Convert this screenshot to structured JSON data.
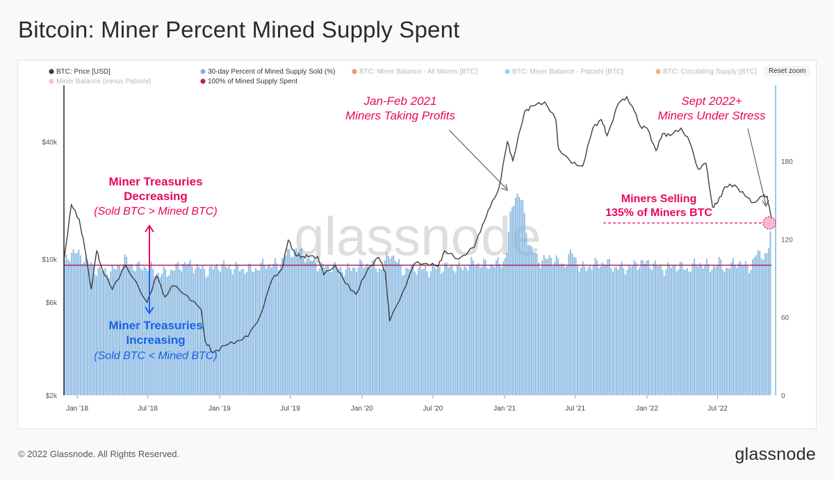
{
  "page": {
    "title": "Bitcoin: Miner Percent Mined Supply Spent",
    "footer_copyright": "© 2022 Glassnode. All Rights Reserved.",
    "footer_brand": "glassnode",
    "watermark": "glassnode",
    "reset_zoom_label": "Reset zoom"
  },
  "colors": {
    "price": "#3d3d3d",
    "supply_sold": "#7fb3df",
    "threshold": "#b0245c",
    "miner_balance_all": "#e53d1f",
    "miner_balance_patoshi": "#26b8d8",
    "circulating": "#f26b1d",
    "minus_patoshi": "#f29a86",
    "pink_annotation": "#e8065f",
    "blue_annotation": "#1763e8"
  },
  "legend": [
    {
      "label": "BTC: Price [USD]",
      "color": "#3d3d3d",
      "active": true
    },
    {
      "label": "30-day Percent of Mined Supply Sold (%)",
      "color": "#7fb3df",
      "active": true
    },
    {
      "label": "BTC: Miner Balance - All Miners [BTC]",
      "color": "#e53d1f",
      "active": false
    },
    {
      "label": "BTC: Miner Balance - Patoshi [BTC]",
      "color": "#26b8d8",
      "active": false
    },
    {
      "label": "BTC: Circulating Supply [BTC]",
      "color": "#f26b1d",
      "active": false
    },
    {
      "label": "Miner Balance (minus Patoshi)",
      "color": "#f29a86",
      "active": false
    },
    {
      "label": "100% of Mined Supply Spent",
      "color": "#b0245c",
      "active": true
    }
  ],
  "annotations": {
    "decreasing_title": "Miner Treasuries\nDecreasing",
    "decreasing_sub": "(Sold BTC > Mined BTC)",
    "increasing_title": "Miner Treasuries\nIncreasing",
    "increasing_sub": "(Sold BTC < Mined BTC)",
    "profits": "Jan-Feb 2021\nMiners Taking Profits",
    "stress": "Sept 2022+\nMiners Under Stress",
    "selling": "Miners Selling\n135% of Miners BTC"
  },
  "chart_data": {
    "type": "bar",
    "title": "Bitcoin: Miner Percent Mined Supply Spent",
    "x_range": [
      "2017-11-28",
      "2022-11-16"
    ],
    "x_ticks": [
      "Jan '18",
      "Jul '18",
      "Jan '19",
      "Jul '19",
      "Jan '20",
      "Jul '20",
      "Jan '21",
      "Jul '21",
      "Jan '22",
      "Jul '22"
    ],
    "y_left": {
      "label": "",
      "scale": "log",
      "ticks": [
        "$2k",
        "$6k",
        "$10k",
        "$40k"
      ],
      "tick_values": [
        2000,
        6000,
        10000,
        40000
      ],
      "range": [
        2000,
        200000
      ]
    },
    "y_right": {
      "label": "",
      "ticks": [
        "0",
        "60",
        "120",
        "180"
      ],
      "tick_values": [
        0,
        60,
        120,
        180
      ],
      "range": [
        0,
        240
      ]
    },
    "threshold": 100,
    "series": [
      {
        "name": "BTC: Price [USD]",
        "type": "line",
        "axis": "left",
        "dates": [
          "2017-11-28",
          "2017-12-17",
          "2018-01-06",
          "2018-01-20",
          "2018-02-06",
          "2018-02-20",
          "2018-03-05",
          "2018-04-01",
          "2018-05-05",
          "2018-06-29",
          "2018-07-24",
          "2018-08-14",
          "2018-09-04",
          "2018-10-10",
          "2018-11-15",
          "2018-11-25",
          "2018-12-15",
          "2019-01-15",
          "2019-02-15",
          "2019-03-15",
          "2019-04-15",
          "2019-05-15",
          "2019-06-10",
          "2019-06-26",
          "2019-07-15",
          "2019-08-01",
          "2019-08-15",
          "2019-09-10",
          "2019-09-25",
          "2019-10-25",
          "2019-11-20",
          "2019-12-17",
          "2020-01-15",
          "2020-02-13",
          "2020-03-01",
          "2020-03-12",
          "2020-04-15",
          "2020-05-15",
          "2020-06-15",
          "2020-07-15",
          "2020-07-31",
          "2020-09-05",
          "2020-10-15",
          "2020-11-05",
          "2020-11-25",
          "2020-12-17",
          "2021-01-08",
          "2021-01-22",
          "2021-02-21",
          "2021-03-13",
          "2021-04-14",
          "2021-05-12",
          "2021-05-19",
          "2021-06-22",
          "2021-07-20",
          "2021-08-15",
          "2021-09-06",
          "2021-09-21",
          "2021-10-20",
          "2021-11-10",
          "2021-11-30",
          "2021-12-15",
          "2022-01-01",
          "2022-01-24",
          "2022-02-10",
          "2022-03-01",
          "2022-03-29",
          "2022-04-20",
          "2022-05-12",
          "2022-06-01",
          "2022-06-18",
          "2022-07-01",
          "2022-07-20",
          "2022-08-14",
          "2022-09-10",
          "2022-10-01",
          "2022-10-25",
          "2022-11-05",
          "2022-11-16"
        ],
        "values": [
          9800,
          19000,
          16000,
          11500,
          7000,
          11000,
          9000,
          7000,
          9300,
          6000,
          8200,
          6400,
          7300,
          6500,
          5500,
          3800,
          3300,
          3600,
          3800,
          4000,
          5100,
          7800,
          8900,
          12500,
          10500,
          10300,
          10300,
          10300,
          8300,
          9300,
          7500,
          6600,
          8800,
          10200,
          8600,
          4800,
          6800,
          9500,
          9500,
          9200,
          11000,
          10000,
          11500,
          15000,
          18500,
          23000,
          40000,
          32000,
          57000,
          61000,
          64000,
          52000,
          37000,
          31000,
          30000,
          47000,
          52000,
          43000,
          63000,
          68000,
          57000,
          48000,
          47000,
          36000,
          44000,
          43000,
          47000,
          40000,
          29000,
          31000,
          18500,
          19500,
          23500,
          24000,
          21000,
          19500,
          21000,
          21000,
          16000
        ]
      },
      {
        "name": "30-day Percent of Mined Supply Sold (%)",
        "type": "bar",
        "axis": "right",
        "dates": [
          "2017-11-28",
          "2017-12-20",
          "2018-01-15",
          "2018-02-20",
          "2018-04-01",
          "2018-05-05",
          "2018-06-01",
          "2018-07-01",
          "2018-08-01",
          "2018-09-01",
          "2018-10-01",
          "2018-11-01",
          "2018-12-01",
          "2019-01-01",
          "2019-02-01",
          "2019-03-01",
          "2019-04-01",
          "2019-05-01",
          "2019-06-01",
          "2019-06-20",
          "2019-07-20",
          "2019-08-20",
          "2019-09-20",
          "2019-10-20",
          "2019-11-20",
          "2019-12-20",
          "2020-01-20",
          "2020-02-20",
          "2020-03-15",
          "2020-04-15",
          "2020-05-15",
          "2020-06-15",
          "2020-07-15",
          "2020-08-15",
          "2020-09-15",
          "2020-10-15",
          "2020-11-15",
          "2020-12-15",
          "2021-01-05",
          "2021-01-15",
          "2021-01-28",
          "2021-02-15",
          "2021-03-05",
          "2021-04-01",
          "2021-05-01",
          "2021-06-01",
          "2021-06-25",
          "2021-07-15",
          "2021-08-15",
          "2021-09-15",
          "2021-10-15",
          "2021-11-15",
          "2021-12-15",
          "2022-01-15",
          "2022-02-15",
          "2022-03-15",
          "2022-04-15",
          "2022-05-15",
          "2022-06-15",
          "2022-07-05",
          "2022-07-25",
          "2022-08-20",
          "2022-09-10",
          "2022-09-25",
          "2022-10-10",
          "2022-10-25",
          "2022-11-05",
          "2022-11-12",
          "2022-11-16"
        ],
        "values": [
          100,
          111,
          106,
          96,
          95,
          104,
          98,
          99,
          93,
          96,
          101,
          99,
          95,
          100,
          98,
          97,
          97,
          101,
          100,
          108,
          112,
          104,
          99,
          99,
          96,
          99,
          101,
          97,
          110,
          96,
          98,
          96,
          98,
          99,
          98,
          102,
          100,
          101,
          105,
          135,
          155,
          150,
          115,
          103,
          106,
          100,
          110,
          97,
          100,
          102,
          98,
          98,
          102,
          101,
          97,
          100,
          97,
          102,
          98,
          102,
          97,
          103,
          99,
          99,
          109,
          109,
          106,
          118,
          135
        ]
      }
    ]
  }
}
